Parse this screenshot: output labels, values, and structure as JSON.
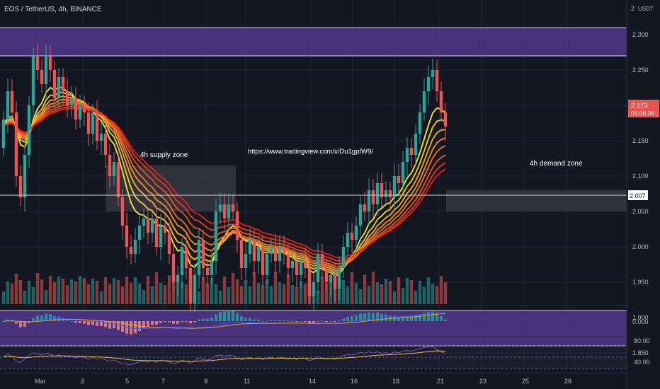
{
  "header": {
    "title": "EOS / TetherUS, 4h, BINANCE",
    "currency": "USDT"
  },
  "price_axis": {
    "ticks": [
      "2.300",
      "2.250",
      "2.200",
      "2.150",
      "2.100",
      "2.050",
      "2.000",
      "1.950",
      "1.900",
      "1.850"
    ],
    "top_label": "2",
    "current_price": "2.173",
    "countdown": "01:06:06",
    "line_price": "2.007"
  },
  "time_axis": {
    "labels": [
      "Mar",
      "3",
      "5",
      "7",
      "9",
      "11",
      "14",
      "16",
      "18",
      "21",
      "23",
      "25",
      "28"
    ]
  },
  "annotations": {
    "supply_zone": "4h supply zone",
    "demand_zone": "4h demand zone",
    "url": "https://www.tradingview.com/x/Du1gpIW9/"
  },
  "macd_panel": {
    "tick": "0.000"
  },
  "rsi_panel": {
    "ticks": [
      "80.00",
      "40.00"
    ]
  },
  "colors": {
    "background": "#131722",
    "up": "#26a69a",
    "down": "#ef5350",
    "zone_purple": "#5b3c9e",
    "zone_gray": "#3b3e48",
    "ribbon_start": "#ffee33",
    "ribbon_end": "#e8201a",
    "price_label": "#ef5350"
  },
  "chart_data": {
    "type": "candlestick",
    "symbol": "EOS / TetherUS",
    "interval": "4h",
    "ylim": [
      1.83,
      2.32
    ],
    "price_series": [
      {
        "x": 0,
        "o": 2.14,
        "c": 2.18
      },
      {
        "x": 1,
        "o": 2.18,
        "c": 2.22
      },
      {
        "x": 2,
        "o": 2.22,
        "c": 2.19
      },
      {
        "x": 3,
        "o": 2.19,
        "c": 2.1
      },
      {
        "x": 4,
        "o": 2.1,
        "c": 2.07
      },
      {
        "x": 5,
        "o": 2.07,
        "c": 2.13
      },
      {
        "x": 6,
        "o": 2.13,
        "c": 2.2
      },
      {
        "x": 7,
        "o": 2.2,
        "c": 2.27
      },
      {
        "x": 8,
        "o": 2.27,
        "c": 2.25
      },
      {
        "x": 9,
        "o": 2.25,
        "c": 2.23
      },
      {
        "x": 10,
        "o": 2.23,
        "c": 2.27
      },
      {
        "x": 11,
        "o": 2.27,
        "c": 2.25
      },
      {
        "x": 12,
        "o": 2.25,
        "c": 2.21
      },
      {
        "x": 13,
        "o": 2.21,
        "c": 2.24
      },
      {
        "x": 14,
        "o": 2.24,
        "c": 2.22
      },
      {
        "x": 15,
        "o": 2.22,
        "c": 2.2
      },
      {
        "x": 16,
        "o": 2.2,
        "c": 2.21
      },
      {
        "x": 17,
        "o": 2.21,
        "c": 2.18
      },
      {
        "x": 18,
        "o": 2.18,
        "c": 2.2
      },
      {
        "x": 19,
        "o": 2.2,
        "c": 2.19
      },
      {
        "x": 20,
        "o": 2.19,
        "c": 2.16
      },
      {
        "x": 21,
        "o": 2.16,
        "c": 2.19
      },
      {
        "x": 22,
        "o": 2.19,
        "c": 2.15
      },
      {
        "x": 23,
        "o": 2.15,
        "c": 2.16
      },
      {
        "x": 24,
        "o": 2.16,
        "c": 2.13
      },
      {
        "x": 25,
        "o": 2.13,
        "c": 2.1
      },
      {
        "x": 26,
        "o": 2.1,
        "c": 2.12
      },
      {
        "x": 27,
        "o": 2.12,
        "c": 2.07
      },
      {
        "x": 28,
        "o": 2.07,
        "c": 2.03
      },
      {
        "x": 29,
        "o": 2.03,
        "c": 2.0
      },
      {
        "x": 30,
        "o": 2.0,
        "c": 1.99
      },
      {
        "x": 31,
        "o": 1.99,
        "c": 2.01
      },
      {
        "x": 32,
        "o": 2.01,
        "c": 2.03
      },
      {
        "x": 33,
        "o": 2.03,
        "c": 2.04
      },
      {
        "x": 34,
        "o": 2.04,
        "c": 2.02
      },
      {
        "x": 35,
        "o": 2.02,
        "c": 2.04
      },
      {
        "x": 36,
        "o": 2.04,
        "c": 2.0
      },
      {
        "x": 37,
        "o": 2.0,
        "c": 2.03
      },
      {
        "x": 38,
        "o": 2.03,
        "c": 2.02
      },
      {
        "x": 39,
        "o": 2.02,
        "c": 1.99
      },
      {
        "x": 40,
        "o": 1.99,
        "c": 1.95
      },
      {
        "x": 41,
        "o": 1.95,
        "c": 1.96
      },
      {
        "x": 42,
        "o": 1.96,
        "c": 2.0
      },
      {
        "x": 43,
        "o": 2.0,
        "c": 1.97
      },
      {
        "x": 44,
        "o": 1.97,
        "c": 1.92
      },
      {
        "x": 45,
        "o": 1.92,
        "c": 1.96
      },
      {
        "x": 46,
        "o": 1.96,
        "c": 2.01
      },
      {
        "x": 47,
        "o": 2.01,
        "c": 1.97
      },
      {
        "x": 48,
        "o": 1.97,
        "c": 1.96
      },
      {
        "x": 49,
        "o": 1.96,
        "c": 1.98
      },
      {
        "x": 50,
        "o": 1.98,
        "c": 2.05
      },
      {
        "x": 51,
        "o": 2.05,
        "c": 2.06
      },
      {
        "x": 52,
        "o": 2.06,
        "c": 2.04
      },
      {
        "x": 53,
        "o": 2.04,
        "c": 2.06
      },
      {
        "x": 54,
        "o": 2.06,
        "c": 2.05
      },
      {
        "x": 55,
        "o": 2.05,
        "c": 2.01
      },
      {
        "x": 56,
        "o": 2.01,
        "c": 1.97
      },
      {
        "x": 57,
        "o": 1.97,
        "c": 1.99
      },
      {
        "x": 58,
        "o": 1.99,
        "c": 2.01
      },
      {
        "x": 59,
        "o": 2.01,
        "c": 1.98
      },
      {
        "x": 60,
        "o": 1.98,
        "c": 2.0
      },
      {
        "x": 61,
        "o": 2.0,
        "c": 1.96
      },
      {
        "x": 62,
        "o": 1.96,
        "c": 1.99
      },
      {
        "x": 63,
        "o": 1.99,
        "c": 2.0
      },
      {
        "x": 64,
        "o": 2.0,
        "c": 1.98
      },
      {
        "x": 65,
        "o": 1.98,
        "c": 2.0
      },
      {
        "x": 66,
        "o": 2.0,
        "c": 1.99
      },
      {
        "x": 67,
        "o": 1.99,
        "c": 1.97
      },
      {
        "x": 68,
        "o": 1.97,
        "c": 1.98
      },
      {
        "x": 69,
        "o": 1.98,
        "c": 1.96
      },
      {
        "x": 70,
        "o": 1.96,
        "c": 1.98
      },
      {
        "x": 71,
        "o": 1.98,
        "c": 1.97
      },
      {
        "x": 72,
        "o": 1.97,
        "c": 1.93
      },
      {
        "x": 73,
        "o": 1.93,
        "c": 1.95
      },
      {
        "x": 74,
        "o": 1.95,
        "c": 1.99
      },
      {
        "x": 75,
        "o": 1.99,
        "c": 1.97
      },
      {
        "x": 76,
        "o": 1.97,
        "c": 1.95
      },
      {
        "x": 77,
        "o": 1.95,
        "c": 1.96
      },
      {
        "x": 78,
        "o": 1.96,
        "c": 1.94
      },
      {
        "x": 79,
        "o": 1.94,
        "c": 1.97
      },
      {
        "x": 80,
        "o": 1.97,
        "c": 2.0
      },
      {
        "x": 81,
        "o": 2.0,
        "c": 2.02
      },
      {
        "x": 82,
        "o": 2.02,
        "c": 2.01
      },
      {
        "x": 83,
        "o": 2.01,
        "c": 2.03
      },
      {
        "x": 84,
        "o": 2.03,
        "c": 2.06
      },
      {
        "x": 85,
        "o": 2.06,
        "c": 2.05
      },
      {
        "x": 86,
        "o": 2.05,
        "c": 2.08
      },
      {
        "x": 87,
        "o": 2.08,
        "c": 2.06
      },
      {
        "x": 88,
        "o": 2.06,
        "c": 2.09
      },
      {
        "x": 89,
        "o": 2.09,
        "c": 2.07
      },
      {
        "x": 90,
        "o": 2.07,
        "c": 2.08
      },
      {
        "x": 91,
        "o": 2.08,
        "c": 2.07
      },
      {
        "x": 92,
        "o": 2.07,
        "c": 2.1
      },
      {
        "x": 93,
        "o": 2.1,
        "c": 2.09
      },
      {
        "x": 94,
        "o": 2.09,
        "c": 2.12
      },
      {
        "x": 95,
        "o": 2.12,
        "c": 2.14
      },
      {
        "x": 96,
        "o": 2.14,
        "c": 2.13
      },
      {
        "x": 97,
        "o": 2.13,
        "c": 2.16
      },
      {
        "x": 98,
        "o": 2.16,
        "c": 2.19
      },
      {
        "x": 99,
        "o": 2.19,
        "c": 2.22
      },
      {
        "x": 100,
        "o": 2.22,
        "c": 2.24
      },
      {
        "x": 101,
        "o": 2.24,
        "c": 2.25
      },
      {
        "x": 102,
        "o": 2.25,
        "c": 2.22
      },
      {
        "x": 103,
        "o": 2.22,
        "c": 2.19
      },
      {
        "x": 104,
        "o": 2.19,
        "c": 2.17
      }
    ],
    "zones": [
      {
        "label": "",
        "low": 2.27,
        "high": 2.31,
        "color": "purple"
      },
      {
        "label": "",
        "low": 1.86,
        "high": 1.91,
        "color": "purple"
      },
      {
        "label": "4h supply zone",
        "low": 2.05,
        "high": 2.115,
        "color": "gray"
      },
      {
        "label": "4h demand zone",
        "low": 2.05,
        "high": 2.08,
        "color": "gray"
      }
    ],
    "horizontal_line": 2.007,
    "last_price": 2.173
  }
}
